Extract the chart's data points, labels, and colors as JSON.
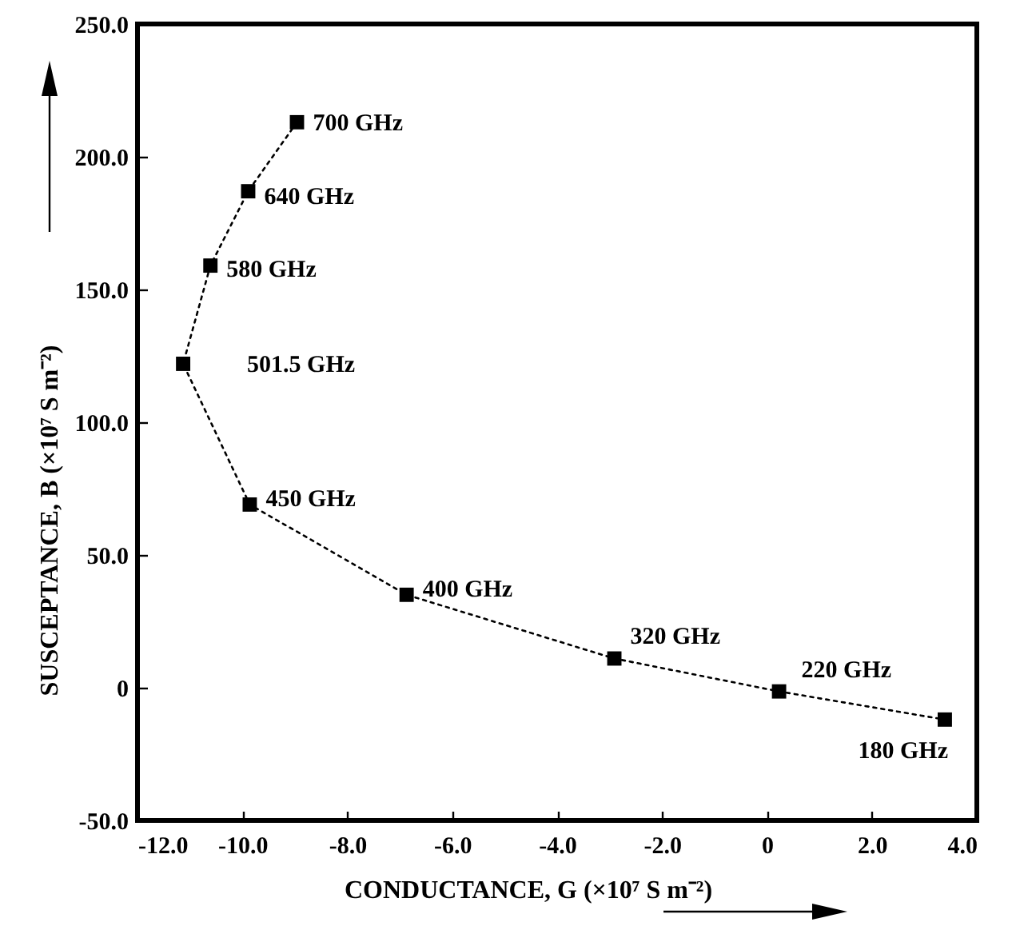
{
  "chart_data": {
    "type": "line",
    "xlabel": "CONDUCTANCE, G (×10⁷ S m⁻²)",
    "ylabel": "SUSCEPTANCE, B (×10⁷ S m⁻²)",
    "series": [
      {
        "color": "#000000",
        "x": [
          -8.96,
          -9.89,
          -10.61,
          -11.13,
          -9.86,
          -6.87,
          -2.91,
          0.23,
          3.39
        ],
        "values": [
          213,
          187,
          159,
          122,
          69,
          35,
          11,
          -1.4,
          -12
        ]
      }
    ],
    "marker": "square",
    "line_style": "dotted",
    "grid": false,
    "xlim": [
      -12,
      4
    ],
    "ylim": [
      -50,
      250
    ],
    "xticks": [
      {
        "value": -12,
        "label": "-12.0"
      },
      {
        "value": -10,
        "label": "-10.0"
      },
      {
        "value": -8,
        "label": "-8.0"
      },
      {
        "value": -6,
        "label": "-6.0"
      },
      {
        "value": -4,
        "label": "-4.0"
      },
      {
        "value": -2,
        "label": "-2.0"
      },
      0,
      {
        "value": 2,
        "label": "2.0"
      },
      {
        "value": 4,
        "label": "4.0"
      }
    ],
    "yticks": [
      {
        "value": -50,
        "label": "-50.0"
      },
      0,
      {
        "value": 50,
        "label": "50.0"
      },
      {
        "value": 100,
        "label": "100.0"
      },
      {
        "value": 150,
        "label": "150.0"
      },
      {
        "value": 200,
        "label": "200.0"
      },
      {
        "value": 250,
        "label": "250.0"
      }
    ],
    "annotations": [
      {
        "text": "700 GHz",
        "x": -8.96,
        "y": 213
      },
      {
        "text": "640 GHz",
        "x": -9.89,
        "y": 187
      },
      {
        "text": "580 GHz",
        "x": -10.61,
        "y": 159
      },
      {
        "text": "501.5 GHz",
        "x": -11.13,
        "y": 122
      },
      {
        "text": "450 GHz",
        "x": -9.86,
        "y": 69
      },
      {
        "text": "400 GHz",
        "x": -6.87,
        "y": 35
      },
      {
        "text": "320 GHz",
        "x": -2.91,
        "y": 11
      },
      {
        "text": "220 GHz",
        "x": 0.23,
        "y": -1.4
      },
      {
        "text": "180 GHz",
        "x": 3.39,
        "y": -12
      }
    ]
  }
}
